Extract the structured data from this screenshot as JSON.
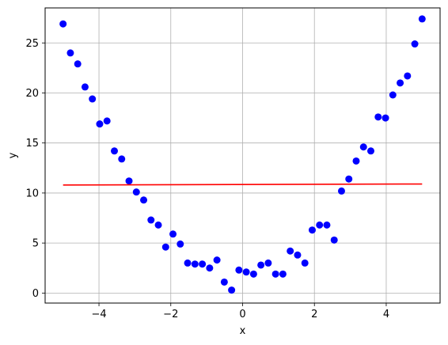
{
  "chart_data": {
    "type": "scatter",
    "title": "",
    "xlabel": "x",
    "ylabel": "y",
    "xlim": [
      -5.5,
      5.5
    ],
    "ylim": [
      -1.0,
      28.5
    ],
    "xticks": [
      -4,
      -2,
      0,
      2,
      4
    ],
    "yticks": [
      0,
      5,
      10,
      15,
      20,
      25
    ],
    "xtick_labels": [
      "−4",
      "−2",
      "0",
      "2",
      "4"
    ],
    "ytick_labels": [
      "0",
      "5",
      "10",
      "15",
      "20",
      "25"
    ],
    "grid": true,
    "legend": "none",
    "series": [
      {
        "type": "scatter",
        "color": "#0000ff",
        "x": [
          -5.0,
          -4.796,
          -4.592,
          -4.388,
          -4.184,
          -3.98,
          -3.776,
          -3.571,
          -3.367,
          -3.163,
          -2.959,
          -2.755,
          -2.551,
          -2.347,
          -2.143,
          -1.939,
          -1.735,
          -1.531,
          -1.327,
          -1.122,
          -0.918,
          -0.714,
          -0.51,
          -0.306,
          -0.102,
          0.102,
          0.306,
          0.51,
          0.714,
          0.918,
          1.122,
          1.327,
          1.531,
          1.735,
          1.939,
          2.143,
          2.347,
          2.551,
          2.755,
          2.959,
          3.163,
          3.367,
          3.571,
          3.776,
          3.98,
          4.184,
          4.388,
          4.592,
          4.796,
          5.0
        ],
        "y": [
          26.9,
          24.0,
          22.9,
          20.6,
          19.4,
          16.9,
          17.2,
          14.2,
          13.4,
          11.2,
          10.1,
          9.3,
          7.3,
          6.8,
          4.6,
          5.9,
          4.9,
          3.0,
          2.9,
          2.9,
          2.5,
          3.3,
          1.1,
          0.3,
          2.3,
          2.1,
          1.9,
          2.8,
          3.0,
          1.9,
          1.9,
          4.2,
          3.8,
          3.0,
          6.3,
          6.8,
          6.8,
          5.3,
          10.2,
          11.4,
          13.2,
          14.6,
          14.2,
          17.6,
          17.5,
          19.8,
          21.0,
          21.7,
          24.9,
          27.4
        ]
      },
      {
        "type": "line",
        "color": "#ff0000",
        "x": [
          -5.0,
          5.0
        ],
        "y": [
          10.8,
          10.9
        ]
      }
    ]
  }
}
